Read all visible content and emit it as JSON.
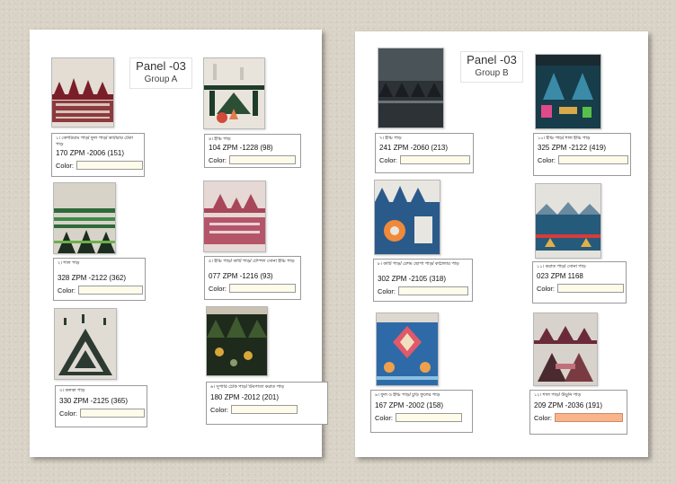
{
  "pages": [
    {
      "title": "Panel -03",
      "group": "Group A",
      "items": [
        {
          "name": "১। কেশরিয়াম পাড়/ ফুল পাড়/ কাটারার টেকা পাড়",
          "code": "170 ZPM -2006 (151)",
          "color_label": "Color:",
          "color_value": ""
        },
        {
          "name": "৪। ইঞ্চি পাড়",
          "code": "104 ZPM -1228 (98)",
          "color_label": "Color:",
          "color_value": ""
        },
        {
          "name": "২। শাল পাড়",
          "code": "328 ZPM -2122 (362)",
          "color_label": "Color:",
          "color_value": ""
        },
        {
          "name": "৫। ইঞ্চি পাড়/ কাটি পাড়/ টেম্পল সোনা ইঞ্চি পাড়",
          "code": "077 ZPM -1216 (93)",
          "color_label": "Color:",
          "color_value": ""
        },
        {
          "name": "৩। কলকা পাড়",
          "code": "330 ZPM -2125 (365)",
          "color_label": "Color:",
          "color_value": ""
        },
        {
          "name": "৬। সুপারি ঠেকি পাড়/ টিমপাতা করাত পাড়",
          "code": "180 ZPM -2012 (201)",
          "color_label": "Color:",
          "color_value": ""
        }
      ]
    },
    {
      "title": "Panel -03",
      "group": "Group B",
      "items": [
        {
          "name": "৭। ইঞ্চি পাড়",
          "code": "241 ZPM -2060 (213)",
          "color_label": "Color:",
          "color_value": ""
        },
        {
          "name": "১০। ইঞ্চি পাড়/ শাল ইঞ্চি পাড়",
          "code": "325 ZPM -2122 (419)",
          "color_label": "Color:",
          "color_value": ""
        },
        {
          "name": "৮। কাটি পাড়/ রেশম ছোপা পাড়/ কাঠালার পাড়",
          "code": "302 ZPM -2105 (318)",
          "color_label": "Color:",
          "color_value": ""
        },
        {
          "name": "১১। করাত পাড়/ সোনা পাড়",
          "code": "023 ZPM 1168",
          "color_label": "Color:",
          "color_value": ""
        },
        {
          "name": "৯। ফুল ও ইঞ্চি পাড়/ চুড়ি ফুলের পাড়",
          "code": "167 ZPM -2002 (158)",
          "color_label": "Color:",
          "color_value": ""
        },
        {
          "name": "১২। শাল পাড়/ উড়ুনি পাড়",
          "code": "209 ZPM -2036 (191)",
          "color_label": "Color:",
          "color_value": ""
        }
      ]
    }
  ],
  "colors": {
    "paper": "#ffffff",
    "background": "#d9d2c6",
    "input_fill": "#fffbea",
    "input_fill_highlight": "#f9b48a"
  }
}
